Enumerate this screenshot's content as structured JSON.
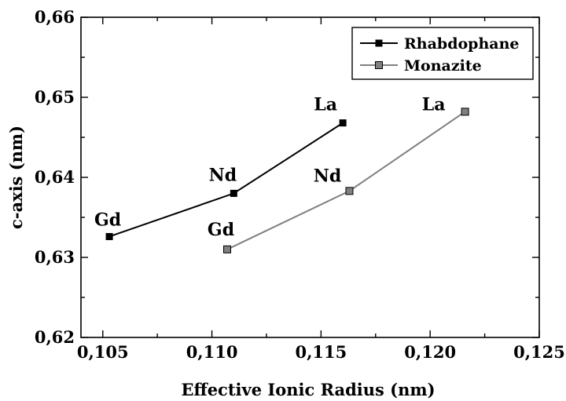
{
  "chart_data": {
    "type": "line",
    "xlabel": "Effective Ionic Radius (nm)",
    "ylabel": "c-axis (nm)",
    "xlim": [
      0.104,
      0.125
    ],
    "ylim": [
      0.62,
      0.66
    ],
    "xticks": [
      0.105,
      0.11,
      0.115,
      0.12,
      0.125
    ],
    "xtick_labels": [
      "0,105",
      "0,110",
      "0,115",
      "0,120",
      "0,125"
    ],
    "yticks": [
      0.62,
      0.63,
      0.64,
      0.65,
      0.66
    ],
    "ytick_labels": [
      "0,62",
      "0,63",
      "0,64",
      "0,65",
      "0,66"
    ],
    "legend_position": "top-right",
    "grid": false,
    "series": [
      {
        "name": "Rhabdophane",
        "color": "#000000",
        "marker": "square",
        "points": [
          {
            "x": 0.1053,
            "y": 0.6326,
            "label": "Gd"
          },
          {
            "x": 0.111,
            "y": 0.638,
            "label": "Nd"
          },
          {
            "x": 0.116,
            "y": 0.6468,
            "label": "La"
          }
        ]
      },
      {
        "name": "Monazite",
        "color": "#808080",
        "marker": "square",
        "points": [
          {
            "x": 0.1107,
            "y": 0.631,
            "label": "Gd"
          },
          {
            "x": 0.1163,
            "y": 0.6383,
            "label": "Nd"
          },
          {
            "x": 0.1216,
            "y": 0.6482,
            "label": "La"
          }
        ]
      }
    ]
  }
}
